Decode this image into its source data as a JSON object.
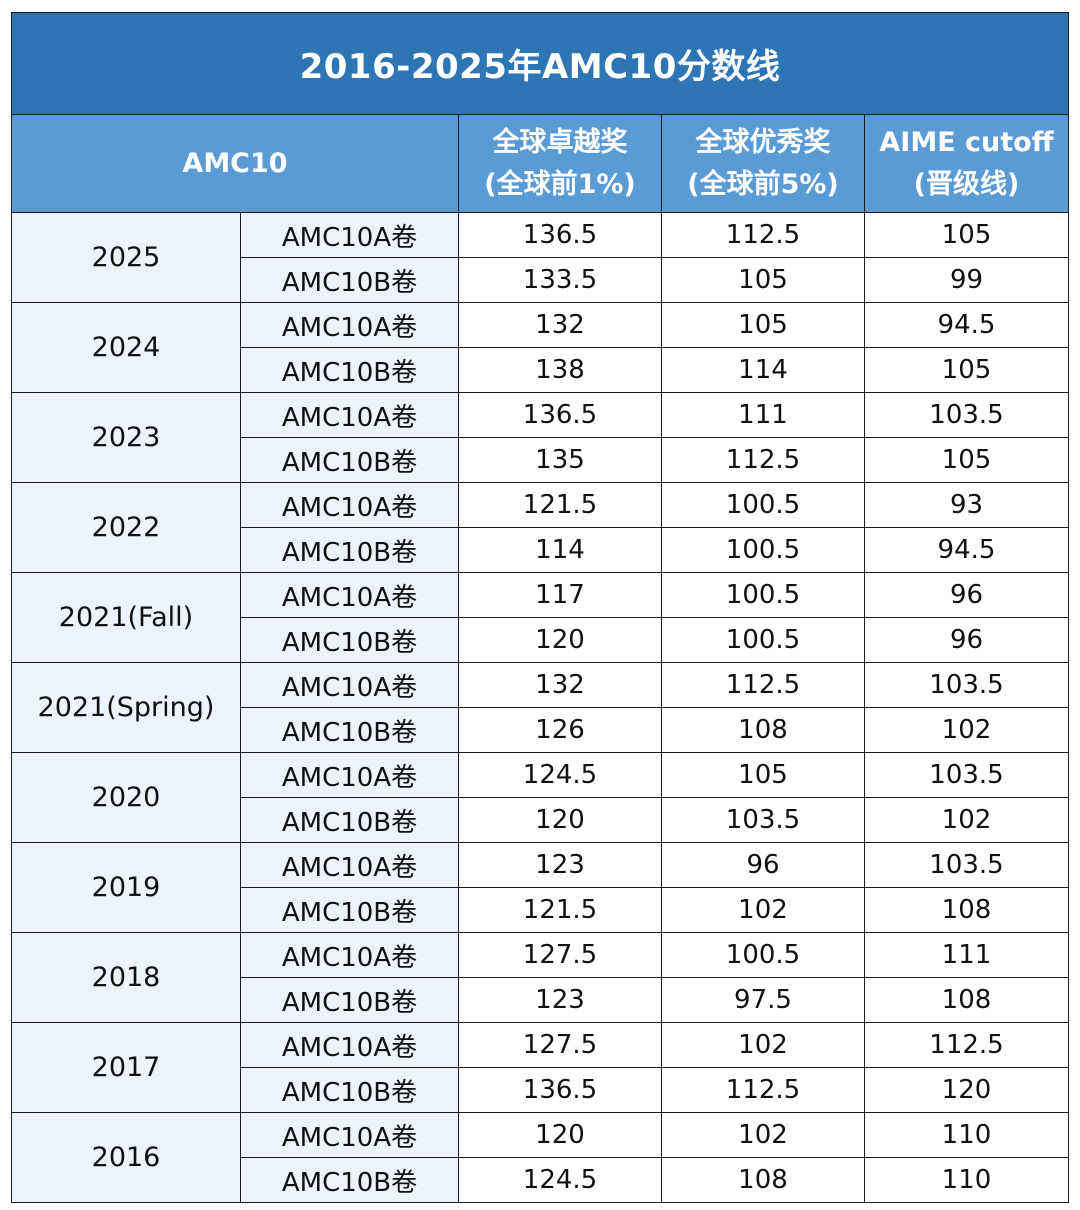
{
  "title": "2016-2025年AMC10分数线",
  "header": {
    "group_label": "AMC10",
    "columns": [
      {
        "line1": "全球卓越奖",
        "line2": "(全球前1%)"
      },
      {
        "line1": "全球优秀奖",
        "line2": "(全球前5%)"
      },
      {
        "line1": "AIME cutoff",
        "line2": "(晋级线)"
      }
    ]
  },
  "rows": [
    {
      "year": "2025",
      "papers": [
        {
          "paper": "AMC10A卷",
          "top1": "136.5",
          "top5": "112.5",
          "aime": "105"
        },
        {
          "paper": "AMC10B卷",
          "top1": "133.5",
          "top5": "105",
          "aime": "99"
        }
      ]
    },
    {
      "year": "2024",
      "papers": [
        {
          "paper": "AMC10A卷",
          "top1": "132",
          "top5": "105",
          "aime": "94.5"
        },
        {
          "paper": "AMC10B卷",
          "top1": "138",
          "top5": "114",
          "aime": "105"
        }
      ]
    },
    {
      "year": "2023",
      "papers": [
        {
          "paper": "AMC10A卷",
          "top1": "136.5",
          "top5": "111",
          "aime": "103.5"
        },
        {
          "paper": "AMC10B卷",
          "top1": "135",
          "top5": "112.5",
          "aime": "105"
        }
      ]
    },
    {
      "year": "2022",
      "papers": [
        {
          "paper": "AMC10A卷",
          "top1": "121.5",
          "top5": "100.5",
          "aime": "93"
        },
        {
          "paper": "AMC10B卷",
          "top1": "114",
          "top5": "100.5",
          "aime": "94.5"
        }
      ]
    },
    {
      "year": "2021(Fall)",
      "papers": [
        {
          "paper": "AMC10A卷",
          "top1": "117",
          "top5": "100.5",
          "aime": "96"
        },
        {
          "paper": "AMC10B卷",
          "top1": "120",
          "top5": "100.5",
          "aime": "96"
        }
      ]
    },
    {
      "year": "2021(Spring)",
      "papers": [
        {
          "paper": "AMC10A卷",
          "top1": "132",
          "top5": "112.5",
          "aime": "103.5"
        },
        {
          "paper": "AMC10B卷",
          "top1": "126",
          "top5": "108",
          "aime": "102"
        }
      ]
    },
    {
      "year": "2020",
      "papers": [
        {
          "paper": "AMC10A卷",
          "top1": "124.5",
          "top5": "105",
          "aime": "103.5"
        },
        {
          "paper": "AMC10B卷",
          "top1": "120",
          "top5": "103.5",
          "aime": "102"
        }
      ]
    },
    {
      "year": "2019",
      "papers": [
        {
          "paper": "AMC10A卷",
          "top1": "123",
          "top5": "96",
          "aime": "103.5"
        },
        {
          "paper": "AMC10B卷",
          "top1": "121.5",
          "top5": "102",
          "aime": "108"
        }
      ]
    },
    {
      "year": "2018",
      "papers": [
        {
          "paper": "AMC10A卷",
          "top1": "127.5",
          "top5": "100.5",
          "aime": "111"
        },
        {
          "paper": "AMC10B卷",
          "top1": "123",
          "top5": "97.5",
          "aime": "108"
        }
      ]
    },
    {
      "year": "2017",
      "papers": [
        {
          "paper": "AMC10A卷",
          "top1": "127.5",
          "top5": "102",
          "aime": "112.5"
        },
        {
          "paper": "AMC10B卷",
          "top1": "136.5",
          "top5": "112.5",
          "aime": "120"
        }
      ]
    },
    {
      "year": "2016",
      "papers": [
        {
          "paper": "AMC10A卷",
          "top1": "120",
          "top5": "102",
          "aime": "110"
        },
        {
          "paper": "AMC10B卷",
          "top1": "124.5",
          "top5": "108",
          "aime": "110"
        }
      ]
    }
  ],
  "colors": {
    "title_bg": "#2e75b6",
    "header_bg": "#5b9bd5",
    "label_bg": "#edf3fa",
    "border": "#1a1a1a"
  }
}
